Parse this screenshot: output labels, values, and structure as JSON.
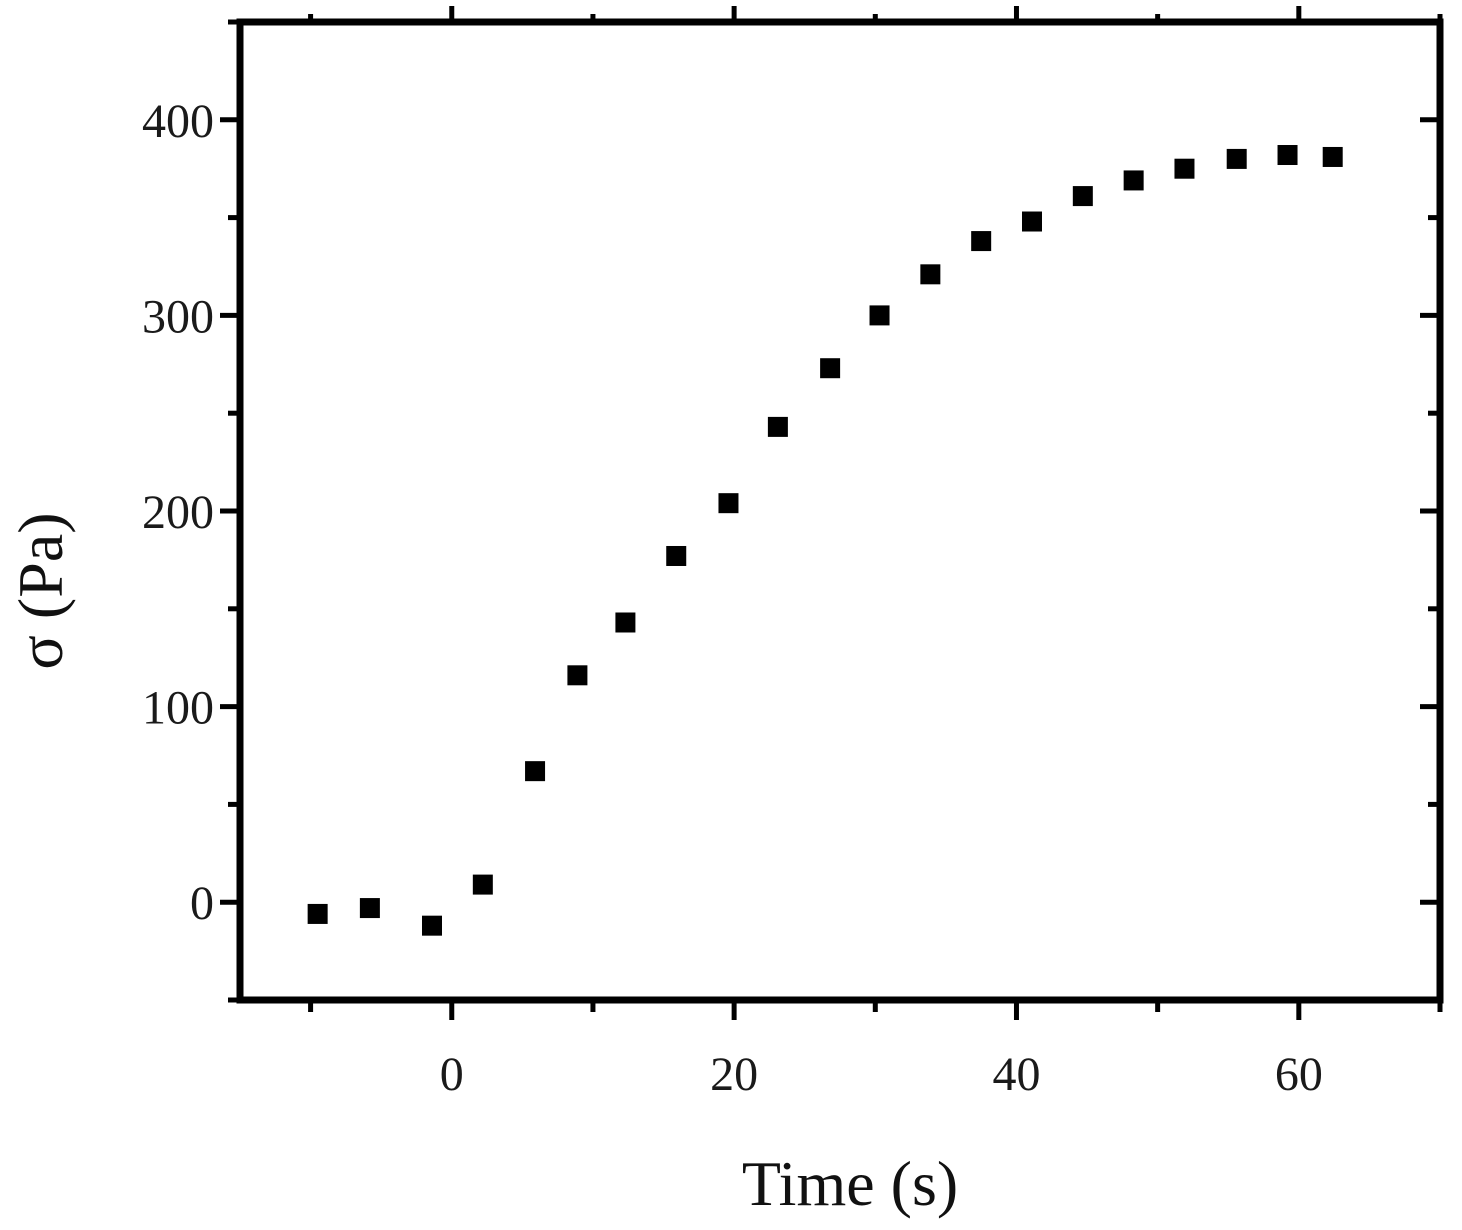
{
  "chart_data": {
    "type": "scatter",
    "xlabel": "Time (s)",
    "ylabel": "σ (Pa)",
    "xlim": [
      -15,
      70
    ],
    "ylim": [
      -50,
      450
    ],
    "x_ticks": [
      0,
      20,
      40,
      60
    ],
    "y_ticks": [
      0,
      100,
      200,
      300,
      400
    ],
    "x_tick_labels": [
      "0",
      "20",
      "40",
      "60"
    ],
    "y_tick_labels": [
      "0",
      "100",
      "200",
      "300",
      "400"
    ],
    "grid": false,
    "legend": "none",
    "marker": "square",
    "marker_color": "#000000",
    "series": [
      {
        "x": [
          -9.5,
          -5.8,
          -1.4,
          2.2,
          5.9,
          8.9,
          12.3,
          15.9,
          19.6,
          23.1,
          26.8,
          30.3,
          33.9,
          37.5,
          41.1,
          44.7,
          48.3,
          51.9,
          55.6,
          59.2,
          62.4
        ],
        "y": [
          -6,
          -3,
          -12,
          9,
          67,
          116,
          143,
          177,
          204,
          243,
          273,
          300,
          321,
          338,
          348,
          361,
          369,
          375,
          380,
          382,
          381
        ]
      }
    ]
  }
}
